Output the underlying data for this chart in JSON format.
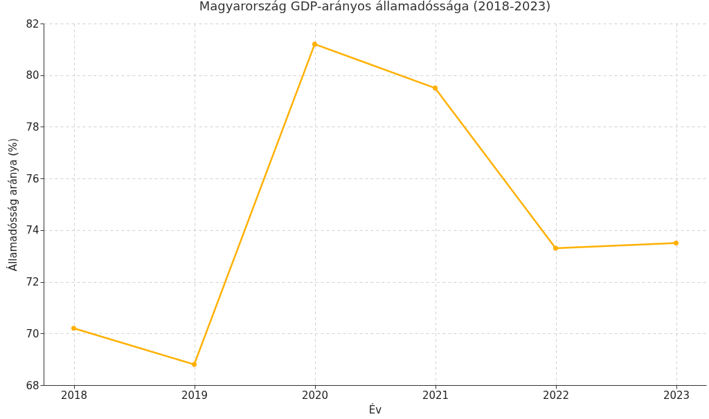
{
  "chart_data": {
    "type": "line",
    "title": "Magyarország GDP-arányos államadóssága (2018-2023)",
    "xlabel": "Év",
    "ylabel": "Államadósság aránya (%)",
    "x": [
      2018,
      2019,
      2020,
      2021,
      2022,
      2023
    ],
    "series": [
      {
        "color": "#ffb000",
        "values": [
          70.2,
          68.8,
          81.2,
          79.5,
          73.3,
          73.5
        ]
      }
    ],
    "xlim": [
      2017.75,
      2023.25
    ],
    "xticks": [
      2018,
      2019,
      2020,
      2021,
      2022,
      2023
    ],
    "ylim": [
      68,
      82
    ],
    "yticks": [
      68,
      70,
      72,
      74,
      76,
      78,
      80,
      82
    ],
    "grid": true,
    "marker": "circle",
    "line_style": "solid"
  }
}
